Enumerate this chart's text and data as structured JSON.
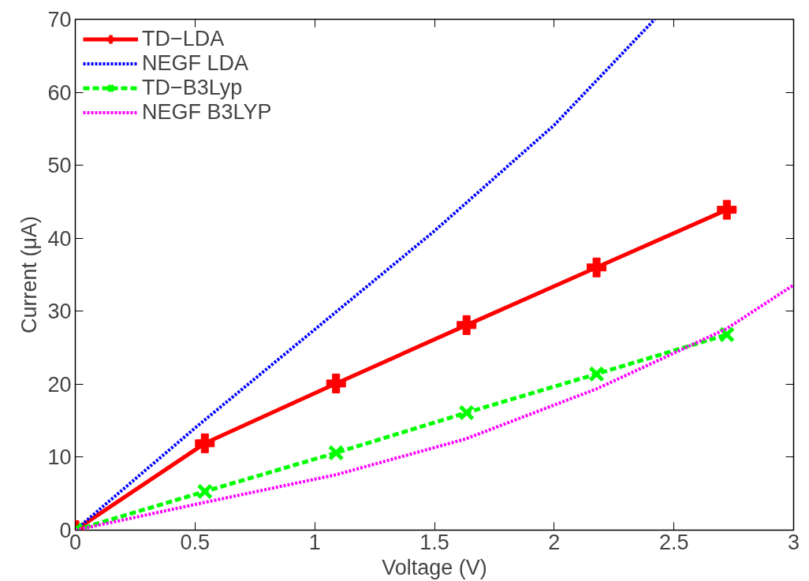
{
  "chart_data": {
    "type": "line",
    "xlabel": "Voltage (V)",
    "ylabel": "Current (μA)",
    "xlim": [
      0,
      3
    ],
    "ylim": [
      0,
      70
    ],
    "xticks": [
      0,
      0.5,
      1,
      1.5,
      2,
      2.5,
      3
    ],
    "yticks": [
      0,
      10,
      20,
      30,
      40,
      50,
      60,
      70
    ],
    "grid": false,
    "legend": "top left",
    "series": [
      {
        "name": "TD−LDA",
        "color": "#ff0000",
        "marker": "cross",
        "line_style": "solid",
        "x": [
          0,
          0.541,
          1.089,
          1.634,
          2.177,
          2.721
        ],
        "values": [
          0,
          11.9,
          20.1,
          28.1,
          36.0,
          43.9
        ]
      },
      {
        "name": "NEGF LDA",
        "color": "#0000ff",
        "marker": "none",
        "line_style": "dotted",
        "x": [
          0,
          0.5,
          1.0,
          1.5,
          2.0,
          2.42
        ],
        "values": [
          0,
          14.0,
          27.5,
          41.0,
          55.5,
          70
        ]
      },
      {
        "name": "TD−B3Lyp",
        "color": "#00ff00",
        "marker": "x",
        "line_style": "dashed",
        "x": [
          0,
          0.541,
          1.089,
          1.634,
          2.177,
          2.721
        ],
        "values": [
          0,
          5.3,
          10.6,
          16.1,
          21.4,
          26.8
        ]
      },
      {
        "name": "NEGF B3LYP",
        "color": "#ff00ff",
        "marker": "none",
        "line_style": "dotted",
        "x": [
          0,
          0.54,
          1.09,
          1.63,
          2.18,
          2.72,
          3.0
        ],
        "values": [
          0,
          3.8,
          7.6,
          12.5,
          19.4,
          27.6,
          33.6
        ]
      }
    ]
  }
}
